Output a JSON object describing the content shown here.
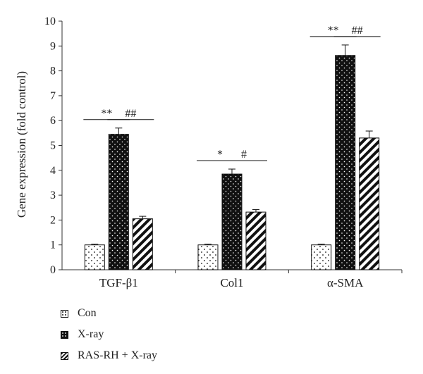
{
  "chart_data": {
    "type": "bar",
    "categories": [
      "TGF-β1",
      "Col1",
      "α-SMA"
    ],
    "series": [
      {
        "name": "Con",
        "values": [
          1.0,
          1.0,
          1.0
        ],
        "errors": [
          0.03,
          0.03,
          0.03
        ],
        "pattern": "dots-sparse"
      },
      {
        "name": "X-ray",
        "values": [
          5.45,
          3.85,
          8.62
        ],
        "errors": [
          0.25,
          0.2,
          0.42
        ],
        "pattern": "dots-dense"
      },
      {
        "name": "RAS-RH + X-ray",
        "values": [
          2.05,
          2.32,
          5.3
        ],
        "errors": [
          0.1,
          0.1,
          0.28
        ],
        "pattern": "stripes"
      }
    ],
    "ylabel": "Gene expression (fold control)",
    "ylim": [
      0,
      10
    ],
    "yticks": [
      "0",
      "1",
      "2",
      "3",
      "4",
      "5",
      "6",
      "7",
      "8",
      "9",
      "10"
    ],
    "grid": false,
    "legend_position": "bottom-left",
    "annotations": [
      {
        "category": "TGF-β1",
        "from": "Con",
        "to": "X-ray",
        "text": "**"
      },
      {
        "category": "TGF-β1",
        "from": "X-ray",
        "to": "RAS-RH + X-ray",
        "text": "##"
      },
      {
        "category": "Col1",
        "from": "Con",
        "to": "X-ray",
        "text": "*"
      },
      {
        "category": "Col1",
        "from": "X-ray",
        "to": "RAS-RH + X-ray",
        "text": "#"
      },
      {
        "category": "α-SMA",
        "from": "Con",
        "to": "X-ray",
        "text": "**"
      },
      {
        "category": "α-SMA",
        "from": "X-ray",
        "to": "RAS-RH + X-ray",
        "text": "##"
      }
    ]
  },
  "legend": {
    "items": [
      {
        "label": "Con"
      },
      {
        "label": "X-ray"
      },
      {
        "label": "RAS-RH + X-ray"
      }
    ]
  }
}
